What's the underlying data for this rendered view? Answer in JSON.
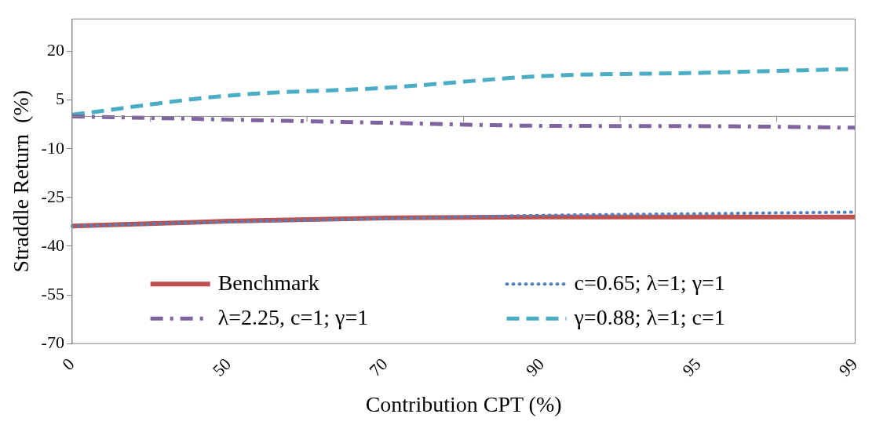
{
  "chart_data": {
    "type": "line",
    "xlabel": "Contribution CPT (%)",
    "ylabel": "Straddle Return  (%)",
    "categories": [
      "0",
      "50",
      "70",
      "90",
      "95",
      "99"
    ],
    "series": [
      {
        "name": "Benchmark",
        "color": "#c0504d",
        "line_style": "solid",
        "values": [
          -33.8,
          -32.3,
          -31.3,
          -31,
          -31,
          -31
        ]
      },
      {
        "name": "c=0.65; λ=1; γ=1",
        "color": "#4f81bd",
        "line_style": "dotted",
        "values": [
          -33.8,
          -32.5,
          -31.5,
          -30.5,
          -30,
          -29.5
        ]
      },
      {
        "name": "λ=2.25, c=1; γ=1",
        "color": "#8064a2",
        "line_style": "dashdot",
        "values": [
          0,
          -1,
          -2,
          -2.9,
          -3,
          -3.5
        ]
      },
      {
        "name": "γ=0.88; λ=1; c=1",
        "color": "#4bacc6",
        "line_style": "dashed",
        "values": [
          0.5,
          6.4,
          8.8,
          12.4,
          13.4,
          14.6
        ]
      }
    ],
    "ylim": [
      -70,
      30
    ],
    "yticks": [
      -70,
      -55,
      -40,
      -25,
      -10,
      5,
      20
    ],
    "grid": false,
    "legend": "bottom",
    "marker": "none"
  }
}
